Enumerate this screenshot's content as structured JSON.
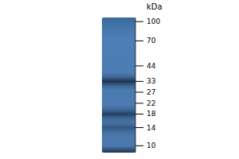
{
  "chart_data": {
    "type": "gel",
    "y_label": "kDa",
    "values": [
      33,
      18,
      14
    ],
    "intensity": [
      0.75,
      0.6,
      0.35
    ],
    "color": "#0d1a2e",
    "log": "y",
    "ylim": [
      8.8,
      108
    ],
    "yticks": [
      100,
      70,
      44,
      33,
      27,
      22,
      18,
      14,
      10
    ],
    "tick_labels": "y",
    "grid": false
  }
}
